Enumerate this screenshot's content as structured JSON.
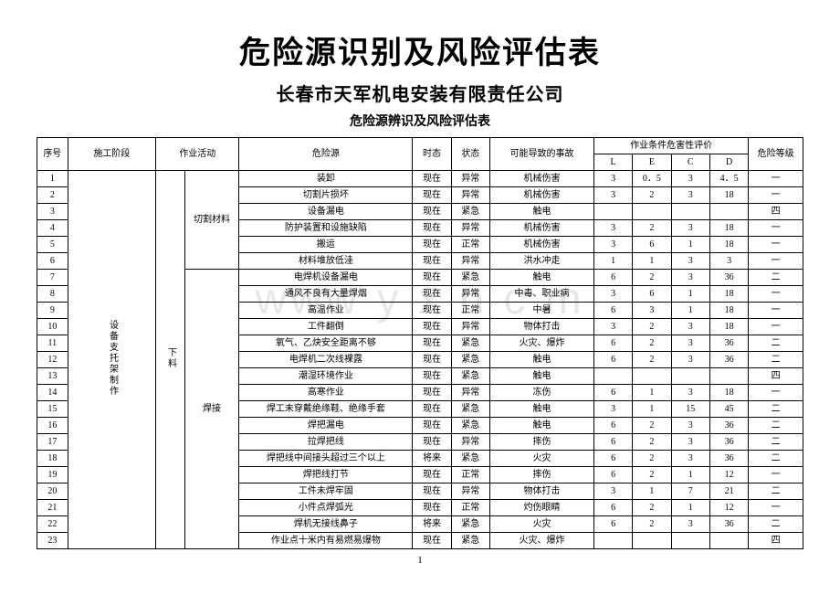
{
  "titles": {
    "main": "危险源识别及风险评估表",
    "sub": "长春市天军机电安装有限责任公司",
    "table": "危险源辨识及风险评估表"
  },
  "watermark": "www  y x n  c  m",
  "page_number": "1",
  "headers": {
    "seq": "序号",
    "stage": "施工阶段",
    "activity": "作业活动",
    "hazard": "危险源",
    "time": "时态",
    "state": "状态",
    "accident": "可能导致的事故",
    "eval_group": "作业条件危害性评价",
    "L": "L",
    "E": "E",
    "C": "C",
    "D": "D",
    "level": "危险等级"
  },
  "merged": {
    "stage_1_23": "设备支托架制作",
    "activity_1_23": "下料",
    "sub_activity_1_6": "切割材料",
    "sub_activity_7_23": "焊接"
  },
  "rows": [
    {
      "n": "1",
      "hazard": "装卸",
      "time": "现在",
      "state": "异常",
      "acc": "机械伤害",
      "L": "3",
      "E": "0．5",
      "C": "3",
      "D": "4．5",
      "lvl": "一"
    },
    {
      "n": "2",
      "hazard": "切割片损坏",
      "time": "现在",
      "state": "异常",
      "acc": "机械伤害",
      "L": "3",
      "E": "2",
      "C": "3",
      "D": "18",
      "lvl": "一"
    },
    {
      "n": "3",
      "hazard": "设备漏电",
      "time": "现在",
      "state": "紧急",
      "acc": "触电",
      "L": "",
      "E": "",
      "C": "",
      "D": "",
      "lvl": "四"
    },
    {
      "n": "4",
      "hazard": "防护装置和设施缺陷",
      "time": "现在",
      "state": "异常",
      "acc": "机械伤害",
      "L": "3",
      "E": "2",
      "C": "3",
      "D": "18",
      "lvl": "一"
    },
    {
      "n": "5",
      "hazard": "搬运",
      "time": "现在",
      "state": "正常",
      "acc": "机械伤害",
      "L": "3",
      "E": "6",
      "C": "1",
      "D": "18",
      "lvl": "一"
    },
    {
      "n": "6",
      "hazard": "材料堆放低洼",
      "time": "现在",
      "state": "异常",
      "acc": "洪水冲走",
      "L": "1",
      "E": "1",
      "C": "3",
      "D": "3",
      "lvl": "一"
    },
    {
      "n": "7",
      "hazard": "电焊机设备漏电",
      "time": "现在",
      "state": "紧急",
      "acc": "触电",
      "L": "6",
      "E": "2",
      "C": "3",
      "D": "36",
      "lvl": "二"
    },
    {
      "n": "8",
      "hazard": "通风不良有大量焊烟",
      "time": "现在",
      "state": "异常",
      "acc": "中毒、职业病",
      "L": "3",
      "E": "6",
      "C": "1",
      "D": "18",
      "lvl": "一"
    },
    {
      "n": "9",
      "hazard": "高温作业",
      "time": "现在",
      "state": "正常",
      "acc": "中暑",
      "L": "6",
      "E": "3",
      "C": "1",
      "D": "18",
      "lvl": "一"
    },
    {
      "n": "10",
      "hazard": "工件翻倒",
      "time": "现在",
      "state": "异常",
      "acc": "物体打击",
      "L": "3",
      "E": "2",
      "C": "3",
      "D": "18",
      "lvl": "一"
    },
    {
      "n": "11",
      "hazard": "氧气、乙炔安全距离不够",
      "time": "现在",
      "state": "紧急",
      "acc": "火灾、爆炸",
      "L": "6",
      "E": "2",
      "C": "3",
      "D": "36",
      "lvl": "二"
    },
    {
      "n": "12",
      "hazard": "电焊机二次线裸露",
      "time": "现在",
      "state": "紧急",
      "acc": "触电",
      "L": "6",
      "E": "2",
      "C": "3",
      "D": "36",
      "lvl": "二"
    },
    {
      "n": "13",
      "hazard": "潮湿环境作业",
      "time": "现在",
      "state": "紧急",
      "acc": "触电",
      "L": "",
      "E": "",
      "C": "",
      "D": "",
      "lvl": "四"
    },
    {
      "n": "14",
      "hazard": "高寒作业",
      "time": "现在",
      "state": "异常",
      "acc": "冻伤",
      "L": "6",
      "E": "1",
      "C": "3",
      "D": "18",
      "lvl": "一"
    },
    {
      "n": "15",
      "hazard": "焊工未穿戴绝缘鞋、绝缘手套",
      "time": "现在",
      "state": "紧急",
      "acc": "触电",
      "L": "3",
      "E": "1",
      "C": "15",
      "D": "45",
      "lvl": "二"
    },
    {
      "n": "16",
      "hazard": "焊把漏电",
      "time": "现在",
      "state": "紧急",
      "acc": "触电",
      "L": "6",
      "E": "2",
      "C": "3",
      "D": "36",
      "lvl": "二"
    },
    {
      "n": "17",
      "hazard": "拉焊把线",
      "time": "现在",
      "state": "异常",
      "acc": "摔伤",
      "L": "6",
      "E": "2",
      "C": "3",
      "D": "36",
      "lvl": "二"
    },
    {
      "n": "18",
      "hazard": "焊把线中间接头超过三个以上",
      "time": "将来",
      "state": "紧急",
      "acc": "火灾",
      "L": "6",
      "E": "2",
      "C": "3",
      "D": "36",
      "lvl": "二"
    },
    {
      "n": "19",
      "hazard": "焊把线打节",
      "time": "现在",
      "state": "正常",
      "acc": "摔伤",
      "L": "6",
      "E": "2",
      "C": "1",
      "D": "12",
      "lvl": "一"
    },
    {
      "n": "20",
      "hazard": "工件未焊牢固",
      "time": "现在",
      "state": "异常",
      "acc": "物体打击",
      "L": "3",
      "E": "1",
      "C": "7",
      "D": "21",
      "lvl": "二"
    },
    {
      "n": "21",
      "hazard": "小件点焊弧光",
      "time": "现在",
      "state": "正常",
      "acc": "灼伤眼睛",
      "L": "6",
      "E": "2",
      "C": "1",
      "D": "12",
      "lvl": "一"
    },
    {
      "n": "22",
      "hazard": "焊机无接线鼻子",
      "time": "将来",
      "state": "紧急",
      "acc": "火灾",
      "L": "6",
      "E": "2",
      "C": "3",
      "D": "36",
      "lvl": "二"
    },
    {
      "n": "23",
      "hazard": "作业点十米内有易燃易爆物",
      "time": "现在",
      "state": "紧急",
      "acc": "火灾、爆炸",
      "L": "",
      "E": "",
      "C": "",
      "D": "",
      "lvl": "四"
    }
  ]
}
